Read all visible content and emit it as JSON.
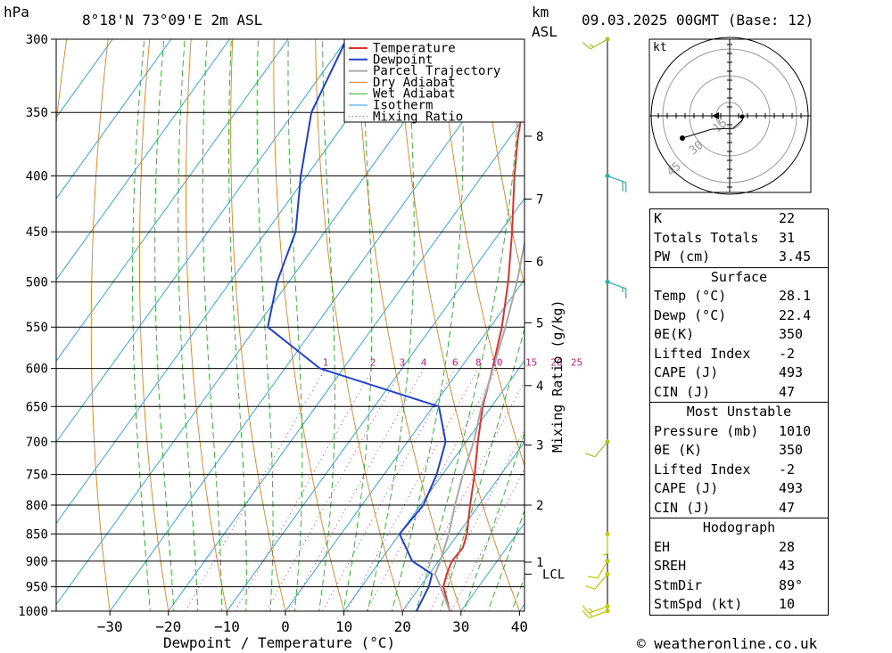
{
  "header": {
    "hpa_label": "hPa",
    "location": "8°18'N  73°09'E  2m  ASL",
    "km_label": "km",
    "asl_label": "ASL",
    "datetime": "09.03.2025  00GMT  (Base: 12)"
  },
  "chart_data": {
    "type": "line",
    "title": "8°18'N  73°09'E  2m  ASL",
    "xlabel": "Dewpoint / Temperature (°C)",
    "ylabel": "hPa",
    "xlim": [
      -40,
      40
    ],
    "ylim": [
      1000,
      300
    ],
    "y_scale": "log",
    "y_ticks": [
      1000,
      950,
      900,
      850,
      800,
      750,
      700,
      650,
      600,
      550,
      500,
      450,
      400,
      350,
      300
    ],
    "x_ticks": [
      -30,
      -20,
      -10,
      0,
      10,
      20,
      30,
      40
    ],
    "skew": 45,
    "legend": [
      "Temperature",
      "Dewpoint",
      "Parcel Trajectory",
      "Dry Adiabat",
      "Wet Adiabat",
      "Isotherm",
      "Mixing Ratio"
    ],
    "legend_position": "top-right",
    "colors": {
      "temperature": "#e03030",
      "dewpoint": "#2040d0",
      "parcel": "#a8a8a8",
      "dry_adiabat": "#e08020",
      "wet_adiabat": "#20b020",
      "isotherm": "#20a0e0",
      "mixing_ratio": "#c02080"
    },
    "series": [
      {
        "name": "Temperature",
        "points": [
          [
            1000,
            28.1
          ],
          [
            950,
            24
          ],
          [
            925,
            23
          ],
          [
            900,
            22.3
          ],
          [
            875,
            22.5
          ],
          [
            850,
            21.5
          ],
          [
            800,
            18.5
          ],
          [
            750,
            15.5
          ],
          [
            700,
            12
          ],
          [
            650,
            8.5
          ],
          [
            600,
            5.5
          ],
          [
            550,
            2
          ],
          [
            500,
            -2.5
          ],
          [
            450,
            -8
          ],
          [
            400,
            -14.5
          ],
          [
            370,
            -18.5
          ],
          [
            350,
            -21
          ]
        ]
      },
      {
        "name": "Dewpoint",
        "points": [
          [
            1000,
            22.4
          ],
          [
            950,
            21.5
          ],
          [
            925,
            20.5
          ],
          [
            900,
            15.5
          ],
          [
            850,
            10
          ],
          [
            800,
            10.5
          ],
          [
            750,
            9
          ],
          [
            700,
            6.5
          ],
          [
            650,
            1
          ],
          [
            600,
            -24
          ],
          [
            550,
            -38
          ],
          [
            500,
            -42
          ],
          [
            450,
            -45
          ],
          [
            400,
            -51
          ],
          [
            350,
            -57
          ],
          [
            300,
            -60
          ]
        ]
      },
      {
        "name": "Parcel Trajectory",
        "points": [
          [
            1000,
            28.1
          ],
          [
            950,
            23.5
          ],
          [
            925,
            21
          ],
          [
            900,
            20.3
          ],
          [
            850,
            18.4
          ],
          [
            800,
            15.9
          ],
          [
            750,
            13.5
          ],
          [
            700,
            11.3
          ],
          [
            650,
            8.3
          ],
          [
            600,
            5.6
          ],
          [
            550,
            2.6
          ],
          [
            500,
            -1
          ],
          [
            450,
            -5.5
          ],
          [
            400,
            -11
          ],
          [
            370,
            -15.5
          ]
        ]
      }
    ],
    "mixing_ratio_lines": [
      1,
      2,
      3,
      4,
      6,
      8,
      10,
      15,
      20,
      25
    ],
    "km_ticks": [
      {
        "km": "1",
        "p": 902
      },
      {
        "km": "LCL",
        "p": 925
      },
      {
        "km": "2",
        "p": 800
      },
      {
        "km": "3",
        "p": 705
      },
      {
        "km": "4",
        "p": 622
      },
      {
        "km": "5",
        "p": 545
      },
      {
        "km": "6",
        "p": 479
      },
      {
        "km": "7",
        "p": 420
      },
      {
        "km": "8",
        "p": 368
      }
    ],
    "mixing_ratio_axis_label": "Mixing Ratio (g/kg)",
    "wind_barbs": [
      {
        "p": 1000,
        "dir": 250,
        "spd": 15
      },
      {
        "p": 990,
        "dir": 250,
        "spd": 15
      },
      {
        "p": 925,
        "dir": 220,
        "spd": 10
      },
      {
        "p": 900,
        "dir": 210,
        "spd": 10
      },
      {
        "p": 850,
        "dir": 180,
        "spd": 5
      },
      {
        "p": 700,
        "dir": 220,
        "spd": 10
      },
      {
        "p": 500,
        "dir": 110,
        "spd": 15
      },
      {
        "p": 400,
        "dir": 110,
        "spd": 20
      },
      {
        "p": 300,
        "dir": 240,
        "spd": 15
      }
    ]
  },
  "hodograph": {
    "unit_label": "kt",
    "ring_labels": [
      "15",
      "30",
      "45"
    ]
  },
  "indices": {
    "rows": [
      {
        "label": "K",
        "value": "22"
      },
      {
        "label": "Totals Totals",
        "value": "31"
      },
      {
        "label": "PW (cm)",
        "value": "3.45"
      }
    ]
  },
  "surface": {
    "title": "Surface",
    "rows": [
      {
        "label": "Temp (°C)",
        "value": "28.1"
      },
      {
        "label": "Dewp (°C)",
        "value": "22.4"
      },
      {
        "label": "θE(K)",
        "value": "350"
      },
      {
        "label": "Lifted Index",
        "value": "-2"
      },
      {
        "label": "CAPE (J)",
        "value": "493"
      },
      {
        "label": "CIN (J)",
        "value": "47"
      }
    ]
  },
  "most_unstable": {
    "title": "Most Unstable",
    "rows": [
      {
        "label": "Pressure (mb)",
        "value": "1010"
      },
      {
        "label": "θE (K)",
        "value": "350"
      },
      {
        "label": "Lifted Index",
        "value": "-2"
      },
      {
        "label": "CAPE (J)",
        "value": "493"
      },
      {
        "label": "CIN (J)",
        "value": "47"
      }
    ]
  },
  "hodograph_table": {
    "title": "Hodograph",
    "rows": [
      {
        "label": "EH",
        "value": "28"
      },
      {
        "label": "SREH",
        "value": "43"
      },
      {
        "label": "StmDir",
        "value": "89°"
      },
      {
        "label": "StmSpd (kt)",
        "value": "10"
      }
    ]
  },
  "footer": {
    "copyright": "© weatheronline.co.uk"
  }
}
